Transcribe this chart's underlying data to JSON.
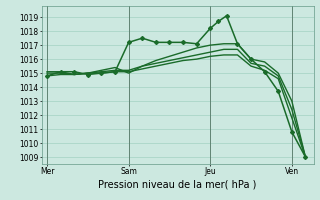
{
  "background_color": "#cce8e0",
  "grid_color": "#99ccbb",
  "line_color": "#1a6b2a",
  "x_ticks_labels": [
    "Mer",
    "Sam",
    "Jeu",
    "Ven"
  ],
  "x_ticks_pos": [
    0,
    3,
    6,
    9
  ],
  "xlabel": "Pression niveau de la mer( hPa )",
  "ylim": [
    1008.5,
    1019.8
  ],
  "xlim": [
    -0.2,
    9.8
  ],
  "yticks": [
    1009,
    1010,
    1011,
    1012,
    1013,
    1014,
    1015,
    1016,
    1017,
    1018,
    1019
  ],
  "lines": [
    {
      "x": [
        0,
        0.5,
        1,
        1.5,
        2,
        2.5,
        3,
        3.5,
        4,
        4.5,
        5,
        5.5,
        6,
        6.3,
        6.6,
        7,
        7.5,
        8,
        8.5,
        9,
        9.5
      ],
      "y": [
        1014.8,
        1015.1,
        1015.1,
        1014.9,
        1015.0,
        1015.1,
        1017.2,
        1017.5,
        1017.2,
        1017.2,
        1017.2,
        1017.1,
        1018.2,
        1018.7,
        1019.1,
        1017.1,
        1016.0,
        1015.1,
        1013.7,
        1010.8,
        1009.0
      ],
      "marker": "D",
      "markersize": 2.0,
      "linewidth": 1.1
    },
    {
      "x": [
        0,
        0.5,
        1,
        1.5,
        2,
        2.5,
        3,
        3.5,
        4,
        4.5,
        5,
        5.5,
        6,
        6.5,
        7,
        7.5,
        8,
        8.5,
        9,
        9.5
      ],
      "y": [
        1015.1,
        1015.1,
        1014.9,
        1015.0,
        1015.2,
        1015.4,
        1015.0,
        1015.5,
        1015.9,
        1016.2,
        1016.5,
        1016.8,
        1017.0,
        1017.1,
        1017.1,
        1016.0,
        1015.8,
        1015.0,
        1013.0,
        1009.0
      ],
      "marker": null,
      "markersize": 0,
      "linewidth": 1.0
    },
    {
      "x": [
        0,
        0.5,
        1,
        1.5,
        2,
        2.5,
        3,
        3.5,
        4,
        4.5,
        5,
        5.5,
        6,
        6.5,
        7,
        7.5,
        8,
        8.5,
        9,
        9.5
      ],
      "y": [
        1015.0,
        1015.0,
        1014.9,
        1015.0,
        1015.1,
        1015.2,
        1015.2,
        1015.5,
        1015.7,
        1015.9,
        1016.1,
        1016.3,
        1016.5,
        1016.7,
        1016.7,
        1015.7,
        1015.5,
        1014.8,
        1012.4,
        1009.0
      ],
      "marker": null,
      "markersize": 0,
      "linewidth": 1.0
    },
    {
      "x": [
        0,
        0.5,
        1,
        1.5,
        2,
        2.5,
        3,
        3.5,
        4,
        4.5,
        5,
        5.5,
        6,
        6.5,
        7,
        7.5,
        8,
        8.5,
        9,
        9.5
      ],
      "y": [
        1014.8,
        1014.9,
        1014.9,
        1015.0,
        1015.0,
        1015.1,
        1015.1,
        1015.3,
        1015.5,
        1015.7,
        1015.9,
        1016.0,
        1016.2,
        1016.3,
        1016.3,
        1015.5,
        1015.2,
        1014.6,
        1011.8,
        1009.0
      ],
      "marker": null,
      "markersize": 0,
      "linewidth": 1.0
    }
  ],
  "vlines_x": [
    0,
    3,
    6,
    9
  ],
  "tick_fontsize": 5.5,
  "xlabel_fontsize": 7.0,
  "figsize": [
    3.2,
    2.0
  ],
  "dpi": 100
}
